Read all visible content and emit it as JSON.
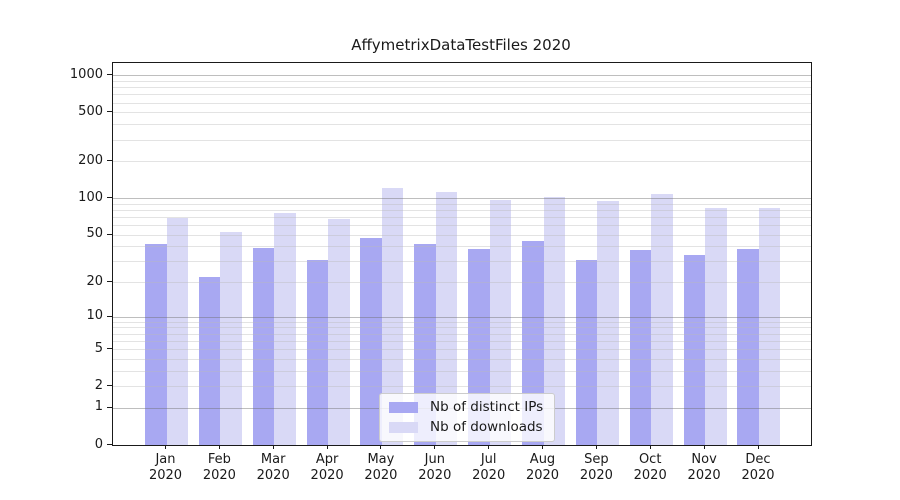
{
  "title": "AffymetrixDataTestFiles 2020",
  "chart_data": {
    "type": "bar",
    "title": "AffymetrixDataTestFiles 2020",
    "categories": [
      "Jan 2020",
      "Feb 2020",
      "Mar 2020",
      "Apr 2020",
      "May 2020",
      "Jun 2020",
      "Jul 2020",
      "Aug 2020",
      "Sep 2020",
      "Oct 2020",
      "Nov 2020",
      "Dec 2020"
    ],
    "series": [
      {
        "name": "Nb of distinct IPs",
        "color": "#a8a8f2",
        "values": [
          42,
          22,
          39,
          31,
          47,
          42,
          38,
          44,
          31,
          37,
          34,
          38
        ]
      },
      {
        "name": "Nb of downloads",
        "color": "#d9d9f6",
        "values": [
          69,
          53,
          76,
          67,
          120,
          112,
          97,
          102,
          95,
          108,
          83,
          83
        ]
      }
    ],
    "xlabel": "",
    "ylabel": "",
    "yscale": "log1p",
    "ylim": [
      0,
      1258
    ],
    "yticks_labeled": [
      0,
      1,
      2,
      5,
      10,
      20,
      50,
      100,
      200,
      500,
      1000
    ],
    "ygrid_major": [
      1,
      10,
      100,
      1000
    ],
    "ygrid_minor": [
      2,
      3,
      4,
      5,
      6,
      7,
      8,
      9,
      20,
      30,
      40,
      50,
      60,
      70,
      80,
      90,
      200,
      300,
      400,
      500,
      600,
      700,
      800,
      900
    ],
    "grid": true,
    "legend_position": "lower-center"
  },
  "colors": {
    "spine": "#1a1a1a",
    "text": "#1a1a1a",
    "background": "#ffffff"
  }
}
